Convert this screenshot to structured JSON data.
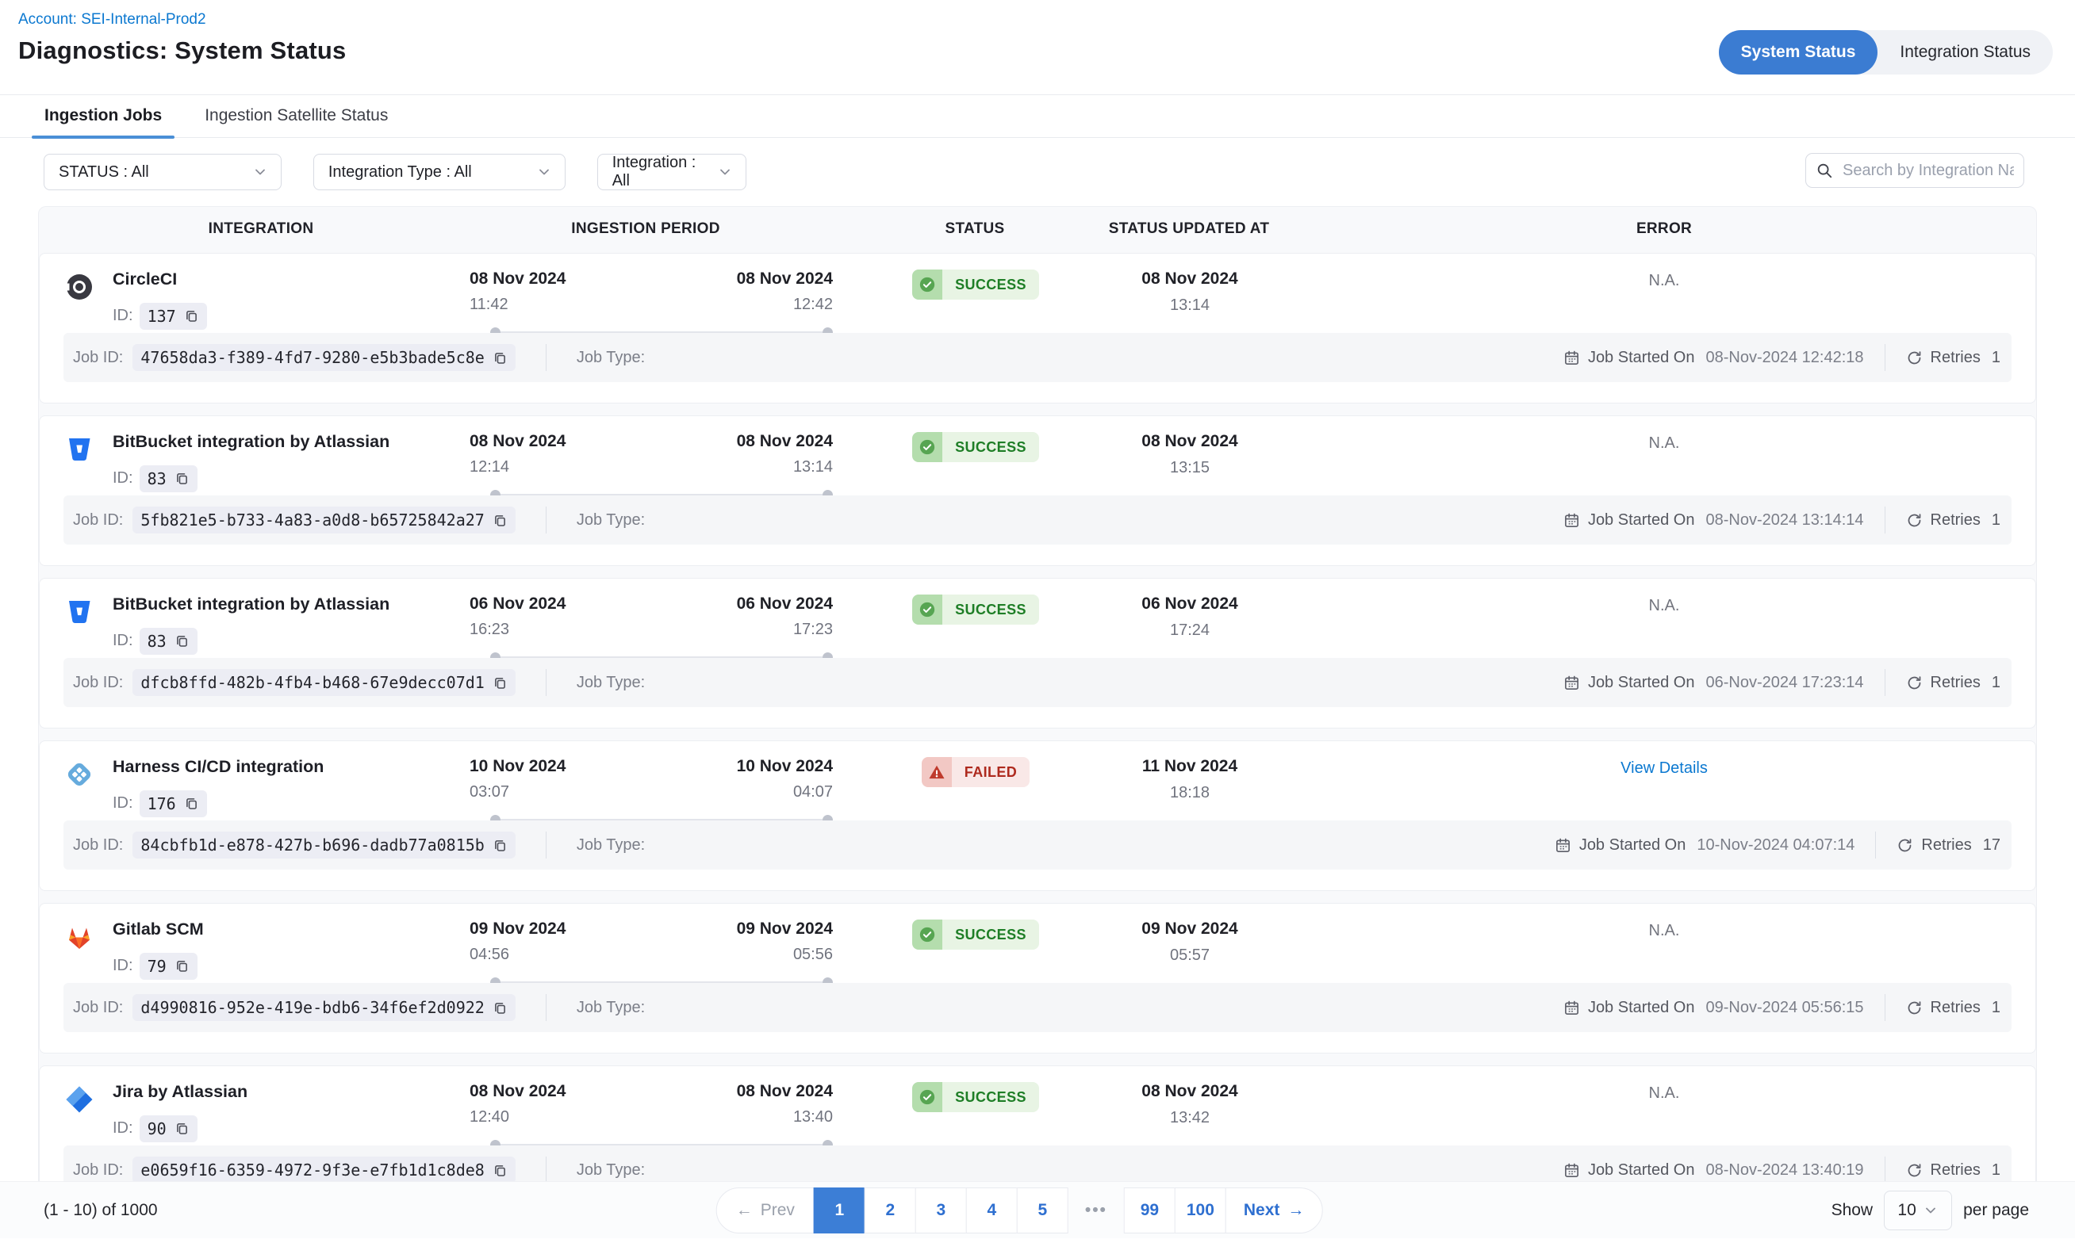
{
  "colors": {
    "accent_blue": "#3b7cd2",
    "link_blue": "#0b78d0",
    "success_green": "#1e7e26",
    "failed_red": "#ae2a1e"
  },
  "header": {
    "account_link": "Account: SEI-Internal-Prod2",
    "title": "Diagnostics: System Status",
    "toggle": [
      {
        "label": "System Status",
        "active": true
      },
      {
        "label": "Integration Status",
        "active": false
      }
    ]
  },
  "tabs": [
    {
      "label": "Ingestion Jobs",
      "active": true
    },
    {
      "label": "Ingestion Satellite Status",
      "active": false
    }
  ],
  "filters": [
    {
      "label": "STATUS : All"
    },
    {
      "label": "Integration Type : All"
    },
    {
      "label": "Integration : All"
    }
  ],
  "search": {
    "placeholder": "Search by Integration Name"
  },
  "labels": {
    "id_label": "ID:",
    "job_id_label": "Job ID:",
    "job_type_label": "Job Type:",
    "job_started_label": "Job Started On",
    "retries_label": "Retries"
  },
  "table": {
    "columns": [
      "INTEGRATION",
      "INGESTION PERIOD",
      "STATUS",
      "STATUS UPDATED AT",
      "ERROR"
    ],
    "rows": [
      {
        "integration": "CircleCI",
        "icon": "circleci",
        "id": "137",
        "period_start_date": "08 Nov 2024",
        "period_start_time": "11:42",
        "period_end_date": "08 Nov 2024",
        "period_end_time": "12:42",
        "status": "SUCCESS",
        "status_type": "success",
        "updated_date": "08 Nov 2024",
        "updated_time": "13:14",
        "error": "N.A.",
        "error_link": false,
        "job_id": "47658da3-f389-4fd7-9280-e5b3bade5c8e",
        "job_started_on": "08-Nov-2024 12:42:18",
        "retries": "1"
      },
      {
        "integration": "BitBucket integration by Atlassian",
        "icon": "bitbucket",
        "id": "83",
        "period_start_date": "08 Nov 2024",
        "period_start_time": "12:14",
        "period_end_date": "08 Nov 2024",
        "period_end_time": "13:14",
        "status": "SUCCESS",
        "status_type": "success",
        "updated_date": "08 Nov 2024",
        "updated_time": "13:15",
        "error": "N.A.",
        "error_link": false,
        "job_id": "5fb821e5-b733-4a83-a0d8-b65725842a27",
        "job_started_on": "08-Nov-2024 13:14:14",
        "retries": "1"
      },
      {
        "integration": "BitBucket integration by Atlassian",
        "icon": "bitbucket",
        "id": "83",
        "period_start_date": "06 Nov 2024",
        "period_start_time": "16:23",
        "period_end_date": "06 Nov 2024",
        "period_end_time": "17:23",
        "status": "SUCCESS",
        "status_type": "success",
        "updated_date": "06 Nov 2024",
        "updated_time": "17:24",
        "error": "N.A.",
        "error_link": false,
        "job_id": "dfcb8ffd-482b-4fb4-b468-67e9decc07d1",
        "job_started_on": "06-Nov-2024 17:23:14",
        "retries": "1"
      },
      {
        "integration": "Harness CI/CD integration",
        "icon": "harness",
        "id": "176",
        "period_start_date": "10 Nov 2024",
        "period_start_time": "03:07",
        "period_end_date": "10 Nov 2024",
        "period_end_time": "04:07",
        "status": "FAILED",
        "status_type": "failed",
        "updated_date": "11 Nov 2024",
        "updated_time": "18:18",
        "error": "View Details",
        "error_link": true,
        "job_id": "84cbfb1d-e878-427b-b696-dadb77a0815b",
        "job_started_on": "10-Nov-2024 04:07:14",
        "retries": "17"
      },
      {
        "integration": "Gitlab SCM",
        "icon": "gitlab",
        "id": "79",
        "period_start_date": "09 Nov 2024",
        "period_start_time": "04:56",
        "period_end_date": "09 Nov 2024",
        "period_end_time": "05:56",
        "status": "SUCCESS",
        "status_type": "success",
        "updated_date": "09 Nov 2024",
        "updated_time": "05:57",
        "error": "N.A.",
        "error_link": false,
        "job_id": "d4990816-952e-419e-bdb6-34f6ef2d0922",
        "job_started_on": "09-Nov-2024 05:56:15",
        "retries": "1"
      },
      {
        "integration": "Jira by Atlassian",
        "icon": "jira",
        "id": "90",
        "period_start_date": "08 Nov 2024",
        "period_start_time": "12:40",
        "period_end_date": "08 Nov 2024",
        "period_end_time": "13:40",
        "status": "SUCCESS",
        "status_type": "success",
        "updated_date": "08 Nov 2024",
        "updated_time": "13:42",
        "error": "N.A.",
        "error_link": false,
        "job_id": "e0659f16-6359-4972-9f3e-e7fb1d1c8de8",
        "job_started_on": "08-Nov-2024 13:40:19",
        "retries": "1"
      }
    ]
  },
  "footer": {
    "range": "(1 - 10) of 1000",
    "prev_label": "Prev",
    "next_label": "Next",
    "pages": [
      "1",
      "2",
      "3",
      "4",
      "5",
      "•••",
      "99",
      "100"
    ],
    "active_page": "1",
    "ellipsis": "•••",
    "show_label": "Show",
    "page_size": "10",
    "per_page_label": "per page"
  }
}
